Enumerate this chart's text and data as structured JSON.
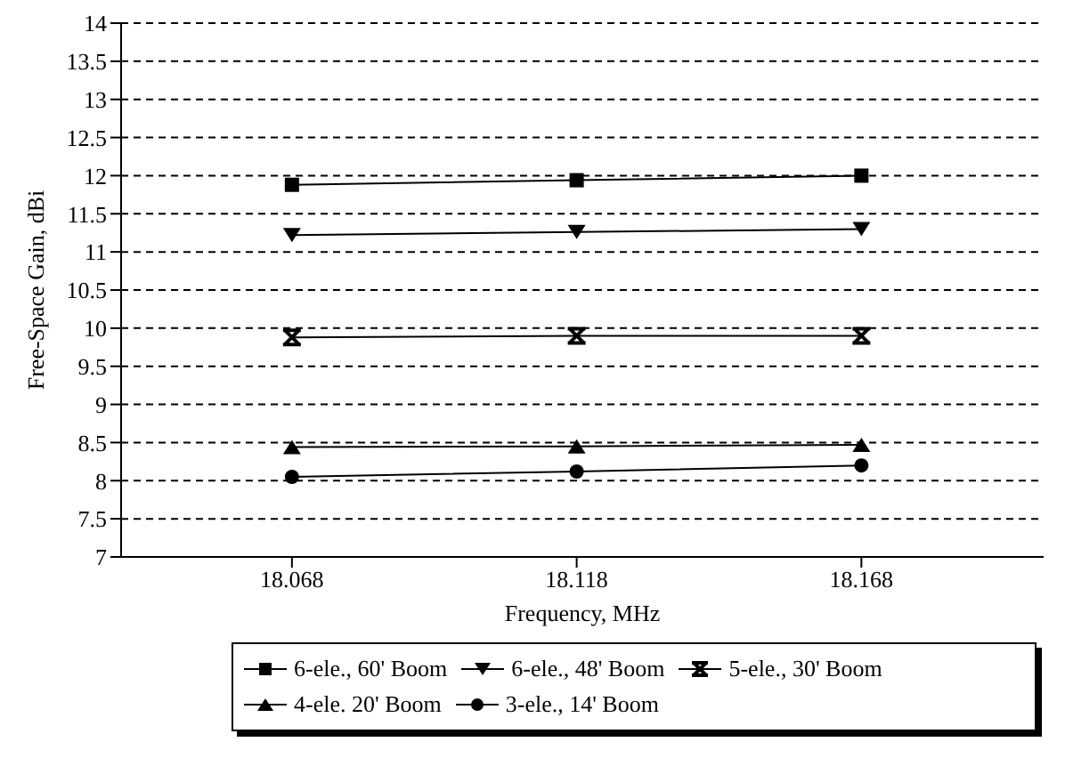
{
  "chart_data": {
    "type": "line",
    "xlabel": "Frequency, MHz",
    "ylabel": "Free-Space Gain, dBi",
    "x": [
      18.068,
      18.118,
      18.168
    ],
    "xlim": [
      18.038,
      18.2
    ],
    "xticks": [
      18.068,
      18.118,
      18.168
    ],
    "ylim": [
      7,
      14
    ],
    "yticks": [
      7,
      7.5,
      8,
      8.5,
      9,
      9.5,
      10,
      10.5,
      11,
      11.5,
      12,
      12.5,
      13,
      13.5,
      14
    ],
    "grid": "y",
    "legend": "bottom",
    "series": [
      {
        "name": "6-ele., 60' Boom",
        "color": "#000000",
        "marker": "square",
        "values": [
          11.88,
          11.94,
          12.0
        ]
      },
      {
        "name": "6-ele., 48' Boom",
        "color": "#000000",
        "marker": "triangle-down",
        "values": [
          11.22,
          11.26,
          11.3
        ]
      },
      {
        "name": "5-ele., 30' Boom",
        "color": "#000000",
        "marker": "cross",
        "values": [
          9.88,
          9.9,
          9.9
        ]
      },
      {
        "name": "4-ele. 20' Boom",
        "color": "#000000",
        "marker": "triangle",
        "values": [
          8.44,
          8.45,
          8.47
        ]
      },
      {
        "name": "3-ele., 14' Boom",
        "color": "#000000",
        "marker": "circle",
        "values": [
          8.05,
          8.12,
          8.2
        ]
      }
    ]
  }
}
